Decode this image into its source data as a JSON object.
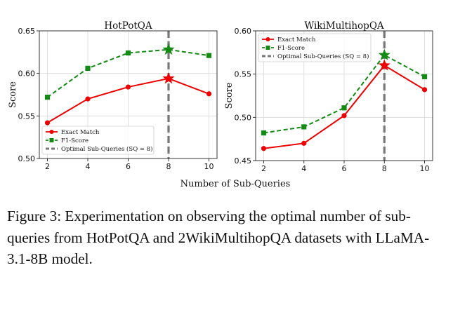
{
  "chart_data": [
    {
      "type": "line",
      "title": "HotPotQA",
      "xlabel": "Number of Sub-Queries",
      "ylabel": "Score",
      "x": [
        2,
        4,
        6,
        8,
        10
      ],
      "xticks": [
        "2",
        "4",
        "6",
        "8",
        "10"
      ],
      "ylim": [
        0.5,
        0.65
      ],
      "yticks": [
        "0.50",
        "0.55",
        "0.60",
        "0.65"
      ],
      "grid": true,
      "legend_position": "lower-right",
      "series": [
        {
          "name": "Exact Match",
          "values": [
            0.542,
            0.57,
            0.584,
            0.594,
            0.576
          ],
          "color": "#ee0000",
          "marker": "circle",
          "style": "solid"
        },
        {
          "name": "F1-Score",
          "values": [
            0.572,
            0.606,
            0.624,
            0.628,
            0.621
          ],
          "color": "#138a13",
          "marker": "square",
          "style": "dashed"
        }
      ],
      "optimal": {
        "label": "Optimal Sub-Queries (SQ = 8)",
        "x": 8,
        "color": "#777777"
      }
    },
    {
      "type": "line",
      "title": "WikiMultihopQA",
      "xlabel": "",
      "ylabel": "Score",
      "x": [
        2,
        4,
        6,
        8,
        10
      ],
      "xticks": [
        "2",
        "4",
        "6",
        "8",
        "10"
      ],
      "ylim": [
        0.45,
        0.6
      ],
      "yticks": [
        "0.45",
        "0.50",
        "0.55",
        "0.60"
      ],
      "grid": true,
      "legend_position": "top-left",
      "series": [
        {
          "name": "Exact Match",
          "values": [
            0.464,
            0.47,
            0.502,
            0.56,
            0.532
          ],
          "color": "#ee0000",
          "marker": "circle",
          "style": "solid"
        },
        {
          "name": "F1-Score",
          "values": [
            0.482,
            0.489,
            0.511,
            0.572,
            0.547
          ],
          "color": "#138a13",
          "marker": "square",
          "style": "dashed"
        }
      ],
      "optimal": {
        "label": "Optimal Sub-Queries (SQ = 8)",
        "x": 8,
        "color": "#777777"
      }
    }
  ],
  "caption": {
    "label": "Figure 3:",
    "text": "Experimentation on observing the optimal number of sub-queries from HotPotQA and 2WikiMultihopQA datasets with LLaMA-3.1-8B model."
  },
  "shared_xlabel": "Number of Sub-Queries"
}
